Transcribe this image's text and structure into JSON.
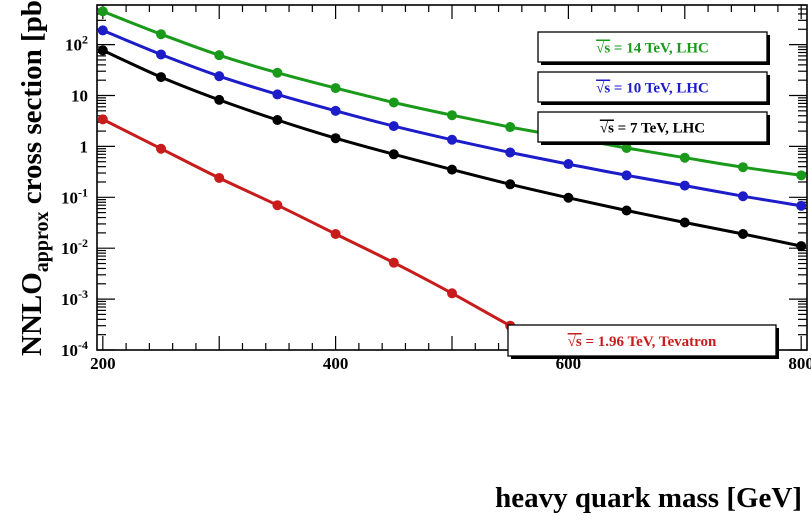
{
  "chart_data": {
    "type": "line",
    "xlabel": "heavy quark mass [GeV]",
    "ylabel_parts": {
      "main": "NNLO",
      "sub": "approx",
      "rest": " cross section [pb]"
    },
    "xlim": [
      195,
      805
    ],
    "ylim": [
      0.0001,
      600
    ],
    "yscale": "log",
    "grid": false,
    "legend_placement": "right",
    "x_ticks": [
      {
        "value": 200,
        "label": "200"
      },
      {
        "value": 400,
        "label": "400"
      },
      {
        "value": 600,
        "label": "600"
      },
      {
        "value": 800,
        "label": "800"
      }
    ],
    "y_ticks": [
      {
        "value": 100,
        "base": "10",
        "exp": "2"
      },
      {
        "value": 10,
        "base": "10",
        "exp": ""
      },
      {
        "value": 1,
        "base": "1",
        "exp": ""
      },
      {
        "value": 0.1,
        "base": "10",
        "exp": "-1"
      },
      {
        "value": 0.01,
        "base": "10",
        "exp": "-2"
      },
      {
        "value": 0.001,
        "base": "10",
        "exp": "-3"
      },
      {
        "value": 0.0001,
        "base": "10",
        "exp": "-4"
      }
    ],
    "series": [
      {
        "name": "√s = 14 TeV, LHC",
        "label_root": "√s",
        "label_rest": " = 14 TeV, LHC",
        "color": "#1a9a1a",
        "x": [
          200,
          250,
          300,
          350,
          400,
          450,
          500,
          550,
          600,
          650,
          700,
          750,
          800
        ],
        "y": [
          450,
          160,
          62,
          28,
          14,
          7.3,
          4.1,
          2.4,
          1.5,
          0.93,
          0.6,
          0.39,
          0.27
        ]
      },
      {
        "name": "√s = 10 TeV, LHC",
        "label_root": "√s",
        "label_rest": " = 10 TeV, LHC",
        "color": "#1c1cc8",
        "x": [
          200,
          250,
          300,
          350,
          400,
          450,
          500,
          550,
          600,
          650,
          700,
          750,
          800
        ],
        "y": [
          190,
          64,
          24,
          10.5,
          5.0,
          2.5,
          1.35,
          0.76,
          0.45,
          0.27,
          0.17,
          0.105,
          0.068
        ]
      },
      {
        "name": "√s = 7 TeV, LHC",
        "label_root": "√s",
        "label_rest": " = 7 TeV, LHC",
        "color": "#000000",
        "x": [
          200,
          250,
          300,
          350,
          400,
          450,
          500,
          550,
          600,
          650,
          700,
          750,
          800
        ],
        "y": [
          77,
          23,
          8.2,
          3.3,
          1.45,
          0.7,
          0.35,
          0.18,
          0.098,
          0.055,
          0.032,
          0.019,
          0.011
        ]
      },
      {
        "name": "√s = 1.96 TeV, Tevatron",
        "label_root": "√s",
        "label_rest": " = 1.96 TeV, Tevatron",
        "color": "#c81c1c",
        "x": [
          200,
          250,
          300,
          350,
          400,
          450,
          500,
          550
        ],
        "y": [
          3.4,
          0.9,
          0.24,
          0.07,
          0.019,
          0.0052,
          0.0013,
          0.0003
        ],
        "line_end": {
          "x": 590,
          "y": 0.0001
        }
      }
    ]
  }
}
